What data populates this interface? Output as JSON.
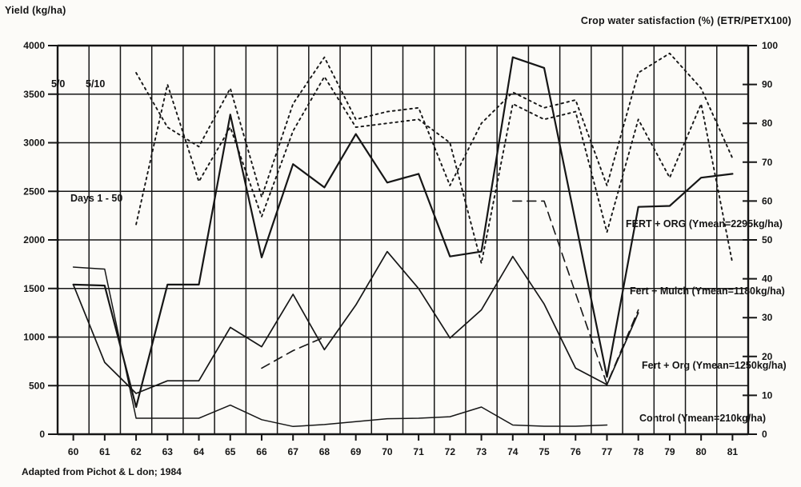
{
  "titles": {
    "left_axis": "Yield (kg/ha)",
    "right_axis": "Crop water satisfaction (%) (ETR/PETX100)"
  },
  "annotations": {
    "sowing_a": "5/0",
    "sowing_b": "5/10",
    "days_range": "Days 1 - 50"
  },
  "footer": "Adapted from Pichot & L don; 1984",
  "chart_data": {
    "type": "line",
    "x": [
      60,
      61,
      62,
      63,
      64,
      65,
      66,
      67,
      68,
      69,
      70,
      71,
      72,
      73,
      74,
      75,
      76,
      77,
      78,
      79,
      80,
      81
    ],
    "xlabel": "",
    "ylabel_left": "Yield (kg/ha)",
    "ylabel_right": "Crop water satisfaction (%) (ETR/PETX100)",
    "ylim_left": [
      0,
      4000
    ],
    "ylim_right": [
      0,
      100
    ],
    "y_ticks_left": [
      0,
      500,
      1000,
      1500,
      2000,
      2500,
      3000,
      3500,
      4000
    ],
    "y_ticks_right": [
      0,
      10,
      20,
      30,
      40,
      50,
      60,
      70,
      80,
      90,
      100
    ],
    "grid": true,
    "legend_position": "inline-right",
    "series": [
      {
        "key": "fert_org_caps",
        "name": "FERT + ORG (Ymean=2295kg/ha)",
        "axis": "left",
        "style": "solid",
        "values": [
          1540,
          1530,
          280,
          1540,
          1540,
          3290,
          1820,
          2780,
          2540,
          3090,
          2590,
          2680,
          1830,
          1880,
          3880,
          3770,
          2180,
          590,
          2340,
          2350,
          2640,
          2680
        ]
      },
      {
        "key": "fert_mulch",
        "name": "Fert + Mulch (Ymean=1180kg/ha)",
        "axis": "left",
        "style": "solid",
        "values": [
          1540,
          740,
          420,
          550,
          550,
          1100,
          900,
          1440,
          870,
          1330,
          1880,
          1500,
          990,
          1280,
          1830,
          1340,
          680,
          510,
          1250,
          null,
          null,
          null
        ]
      },
      {
        "key": "fert_org_dash",
        "name": "Fert + Org (Ymean=1250kg/ha)",
        "axis": "left",
        "style": "dashed",
        "values": [
          null,
          null,
          null,
          null,
          null,
          null,
          680,
          860,
          1000,
          null,
          null,
          null,
          null,
          null,
          2400,
          2400,
          1450,
          515,
          1280,
          null,
          null,
          null
        ]
      },
      {
        "key": "control",
        "name": "Control (Ymean=210kg/ha)",
        "axis": "left",
        "style": "solid",
        "values": [
          1720,
          1700,
          165,
          165,
          165,
          300,
          150,
          80,
          100,
          130,
          160,
          165,
          180,
          280,
          95,
          82,
          82,
          95,
          null,
          null,
          null,
          null
        ]
      },
      {
        "key": "water_5_0",
        "name": "Crop water satisfaction 5/0",
        "axis": "right",
        "style": "dotted",
        "values": [
          null,
          null,
          93,
          79,
          74,
          89,
          61,
          85,
          97,
          81,
          83,
          84,
          64,
          80,
          88,
          84,
          86,
          64,
          93,
          98,
          89,
          71
        ]
      },
      {
        "key": "water_5_10",
        "name": "Crop water satisfaction 5/10",
        "axis": "right",
        "style": "dotted",
        "values": [
          null,
          null,
          54,
          90,
          65,
          79,
          56,
          78,
          92,
          79,
          80,
          81,
          75,
          44,
          85,
          81,
          83,
          52,
          81,
          66,
          85,
          44
        ]
      }
    ]
  }
}
